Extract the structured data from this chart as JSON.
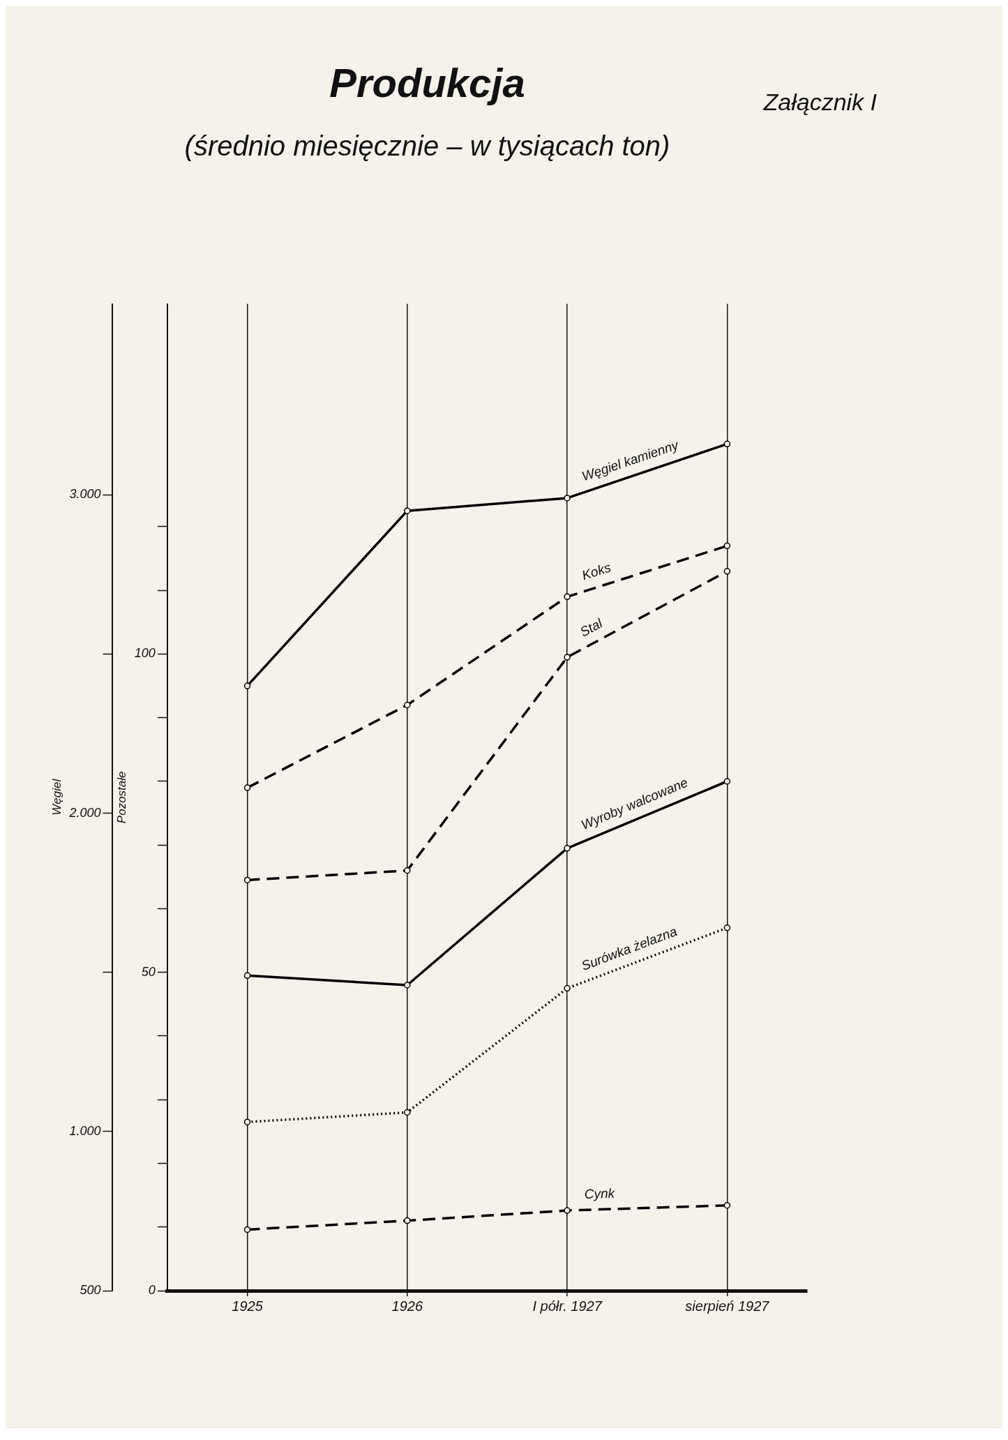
{
  "chart_data": {
    "type": "line",
    "title": "Produkcja",
    "subtitle": "(średnio miesięcznie – w tysiącach ton)",
    "annotations": [
      "Załącznik I"
    ],
    "categories": [
      "1925",
      "1926",
      "I półr. 1927",
      "sierpień 1927"
    ],
    "ylabel": "Węgiel",
    "y2label": "Pozostałe",
    "ylim": [
      500,
      3600
    ],
    "yticks": [
      {
        "value": 500,
        "label": "500"
      },
      {
        "value": 1000,
        "label": "1.000"
      },
      {
        "value": 1500,
        "label": null
      },
      {
        "value": 2000,
        "label": "2.000"
      },
      {
        "value": 2500,
        "label": null
      },
      {
        "value": 3000,
        "label": "3.000"
      }
    ],
    "y2lim": [
      0,
      155
    ],
    "y2ticks": [
      0,
      {
        "value": 10,
        "label": null
      },
      {
        "value": 20,
        "label": null
      },
      {
        "value": 30,
        "label": null
      },
      {
        "value": 40,
        "label": null
      },
      50,
      {
        "value": 60,
        "label": null
      },
      {
        "value": 70,
        "label": null
      },
      {
        "value": 80,
        "label": null
      },
      {
        "value": 90,
        "label": null
      },
      100,
      {
        "value": 110,
        "label": null
      },
      {
        "value": 120,
        "label": null
      }
    ],
    "grid": "x",
    "legend": false,
    "marker": "circle",
    "series": [
      {
        "name": "Węgiel kamienny",
        "color": "#000000",
        "line_style": "solid",
        "values": [
          2400,
          2950,
          2990,
          3160
        ]
      },
      {
        "name": "Koks",
        "color": "#000000",
        "line_style": "dashed",
        "axis": "y2",
        "values": [
          79,
          92,
          109,
          117
        ]
      },
      {
        "name": "Stal",
        "color": "#000000",
        "line_style": "dashed",
        "axis": "y2",
        "values": [
          64.5,
          66,
          99.5,
          113
        ]
      },
      {
        "name": "Wyroby walcowane",
        "color": "#000000",
        "line_style": "solid",
        "axis": "y2",
        "values": [
          49.5,
          48,
          69.5,
          80
        ]
      },
      {
        "name": "Surówka żelazna",
        "color": "#000000",
        "line_style": "dotted",
        "axis": "y2",
        "values": [
          26.5,
          28,
          47.5,
          57
        ]
      },
      {
        "name": "Cynk",
        "color": "#000000",
        "line_style": "dashed",
        "axis": "y2",
        "values": [
          9.6,
          11,
          12.6,
          13.4
        ]
      }
    ]
  }
}
